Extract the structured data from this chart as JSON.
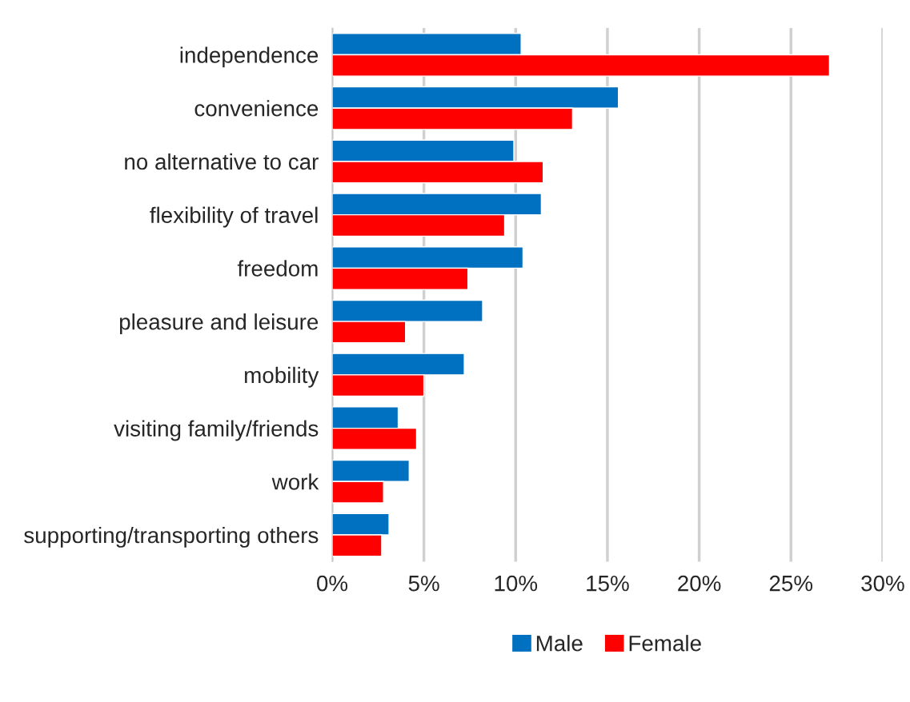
{
  "chart_data": {
    "type": "bar",
    "orientation": "horizontal",
    "categories": [
      "independence",
      "convenience",
      "no alternative to car",
      "flexibility of travel",
      "freedom",
      "pleasure and leisure",
      "mobility",
      "visiting family/friends",
      "work",
      "supporting/transporting others"
    ],
    "series": [
      {
        "name": "Male",
        "color": "#0070c0",
        "values": [
          10.3,
          15.6,
          9.9,
          11.4,
          10.4,
          8.2,
          7.2,
          3.6,
          4.2,
          3.1
        ]
      },
      {
        "name": "Female",
        "color": "#ff0000",
        "values": [
          27.1,
          13.1,
          11.5,
          9.4,
          7.4,
          4.0,
          5.0,
          4.6,
          2.8,
          2.7
        ]
      }
    ],
    "xlim": [
      0,
      30
    ],
    "xticks": [
      {
        "value": 0,
        "label": "0%"
      },
      {
        "value": 5,
        "label": "5%"
      },
      {
        "value": 10,
        "label": "10%"
      },
      {
        "value": 15,
        "label": "15%"
      },
      {
        "value": 20,
        "label": "20%"
      },
      {
        "value": 25,
        "label": "25%"
      },
      {
        "value": 30,
        "label": "30%"
      }
    ],
    "grid": "x",
    "legend": "bottom"
  }
}
